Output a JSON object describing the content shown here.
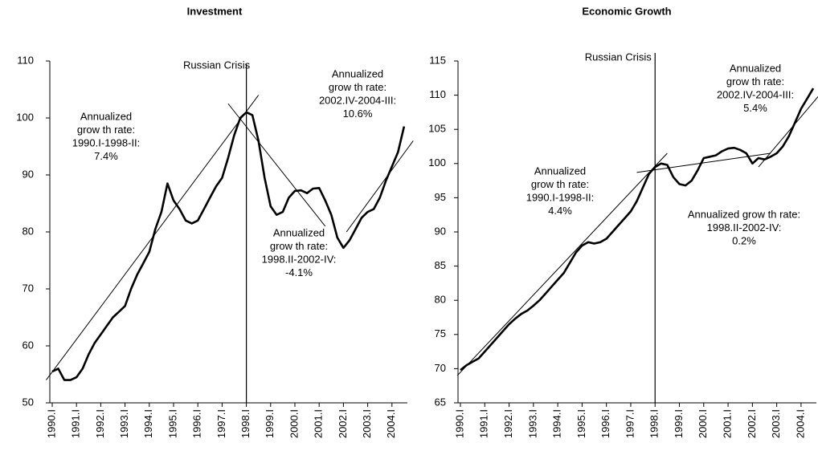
{
  "chart_data": [
    {
      "type": "line",
      "title": "Investment",
      "color": "#000000",
      "categories": [
        "1990.I",
        null,
        null,
        null,
        "1991.I",
        null,
        null,
        null,
        "1992.I",
        null,
        null,
        null,
        "1993.I",
        null,
        null,
        null,
        "1994.I",
        null,
        null,
        null,
        "1995.I",
        null,
        null,
        null,
        "1996.I",
        null,
        null,
        null,
        "1997.I",
        null,
        null,
        null,
        "1998.I",
        null,
        null,
        null,
        "1999.I",
        null,
        null,
        null,
        "2000.I",
        null,
        null,
        null,
        "2001.I",
        null,
        null,
        null,
        "2002.I",
        null,
        null,
        null,
        "2003.I",
        null,
        null,
        null,
        "2004.I",
        null,
        null
      ],
      "values": [
        55.5,
        56,
        54,
        54,
        54.5,
        56,
        58.5,
        60.5,
        62,
        63.5,
        65,
        66,
        67,
        70,
        72.5,
        74.5,
        76.5,
        80.5,
        83.5,
        88.5,
        85.5,
        84,
        82,
        81.5,
        82,
        84,
        86,
        88,
        89.5,
        93,
        97,
        100,
        101,
        100.5,
        96,
        89.5,
        84.5,
        83,
        83.5,
        86,
        87.2,
        87.3,
        86.8,
        87.6,
        87.7,
        85.5,
        83,
        79,
        77.2,
        78.5,
        80.5,
        82.5,
        83.5,
        84,
        86,
        89,
        91.5,
        94,
        98.5
      ],
      "ylim": [
        50,
        110
      ],
      "yticks": [
        50,
        60,
        70,
        80,
        90,
        100,
        110
      ],
      "trends": [
        {
          "x": [
            -1,
            34
          ],
          "y": [
            54,
            104
          ]
        },
        {
          "x": [
            29,
            45
          ],
          "y": [
            102.5,
            81
          ]
        },
        {
          "x": [
            48.5,
            59.5
          ],
          "y": [
            80,
            96
          ]
        }
      ],
      "crisis": {
        "text": "Russian Crisis",
        "category": "1998.I"
      },
      "annotations": [
        {
          "lines": [
            "Annualized",
            "grow th rate:",
            "1990.I-1998-II:",
            "7.4%"
          ]
        },
        {
          "lines": [
            "Annualized",
            "grow th rate:",
            "2002.IV-2004-III:",
            "10.6%"
          ]
        },
        {
          "lines": [
            "Annualized",
            "grow th rate:",
            "1998.II-2002-IV:",
            "-4.1%"
          ]
        }
      ]
    },
    {
      "type": "line",
      "title": "Economic Growth",
      "color": "#000000",
      "categories": [
        "1990.I",
        null,
        null,
        null,
        "1991.I",
        null,
        null,
        null,
        "1992.I",
        null,
        null,
        null,
        "1993.I",
        null,
        null,
        null,
        "1994.I",
        null,
        null,
        null,
        "1995.I",
        null,
        null,
        null,
        "1996.I",
        null,
        null,
        null,
        "1997.I",
        null,
        null,
        null,
        "1998.I",
        null,
        null,
        null,
        "1999.I",
        null,
        null,
        null,
        "2000.I",
        null,
        null,
        null,
        "2001.I",
        null,
        null,
        null,
        "2002.I",
        null,
        null,
        null,
        "2003.I",
        null,
        null,
        null,
        "2004.I",
        null,
        null
      ],
      "values": [
        69.8,
        70.5,
        71,
        71.5,
        72.5,
        73.5,
        74.5,
        75.5,
        76.5,
        77.3,
        78,
        78.5,
        79.2,
        80,
        81,
        82,
        83,
        84,
        85.5,
        87,
        88,
        88.5,
        88.3,
        88.5,
        89,
        90,
        91,
        92,
        93,
        94.5,
        96.5,
        98.5,
        99.5,
        100,
        99.8,
        98,
        97,
        96.8,
        97.5,
        99,
        100.8,
        101,
        101.2,
        101.8,
        102.2,
        102.3,
        102,
        101.5,
        100,
        100.8,
        100.6,
        101,
        101.5,
        102.5,
        104,
        106,
        108,
        109.5,
        111
      ],
      "ylim": [
        65,
        115
      ],
      "yticks": [
        65,
        70,
        75,
        80,
        85,
        90,
        95,
        100,
        105,
        110,
        115
      ],
      "trends": [
        {
          "x": [
            -0.5,
            34
          ],
          "y": [
            69,
            101.5
          ]
        },
        {
          "x": [
            29,
            51
          ],
          "y": [
            98.7,
            101.5
          ]
        },
        {
          "x": [
            49,
            59
          ],
          "y": [
            99.5,
            110
          ]
        }
      ],
      "crisis": {
        "text": "Russian Crisis",
        "category": "1998.I"
      },
      "annotations": [
        {
          "lines": [
            "Annualized",
            "grow th rate:",
            "1990.I-1998-II:",
            "4.4%"
          ]
        },
        {
          "lines": [
            "Annualized",
            "grow th rate:",
            "2002.IV-2004-III:",
            "5.4%"
          ]
        },
        {
          "lines": [
            "Annualized grow th rate:",
            "1998.II-2002-IV:",
            "0.2%"
          ]
        }
      ]
    }
  ]
}
